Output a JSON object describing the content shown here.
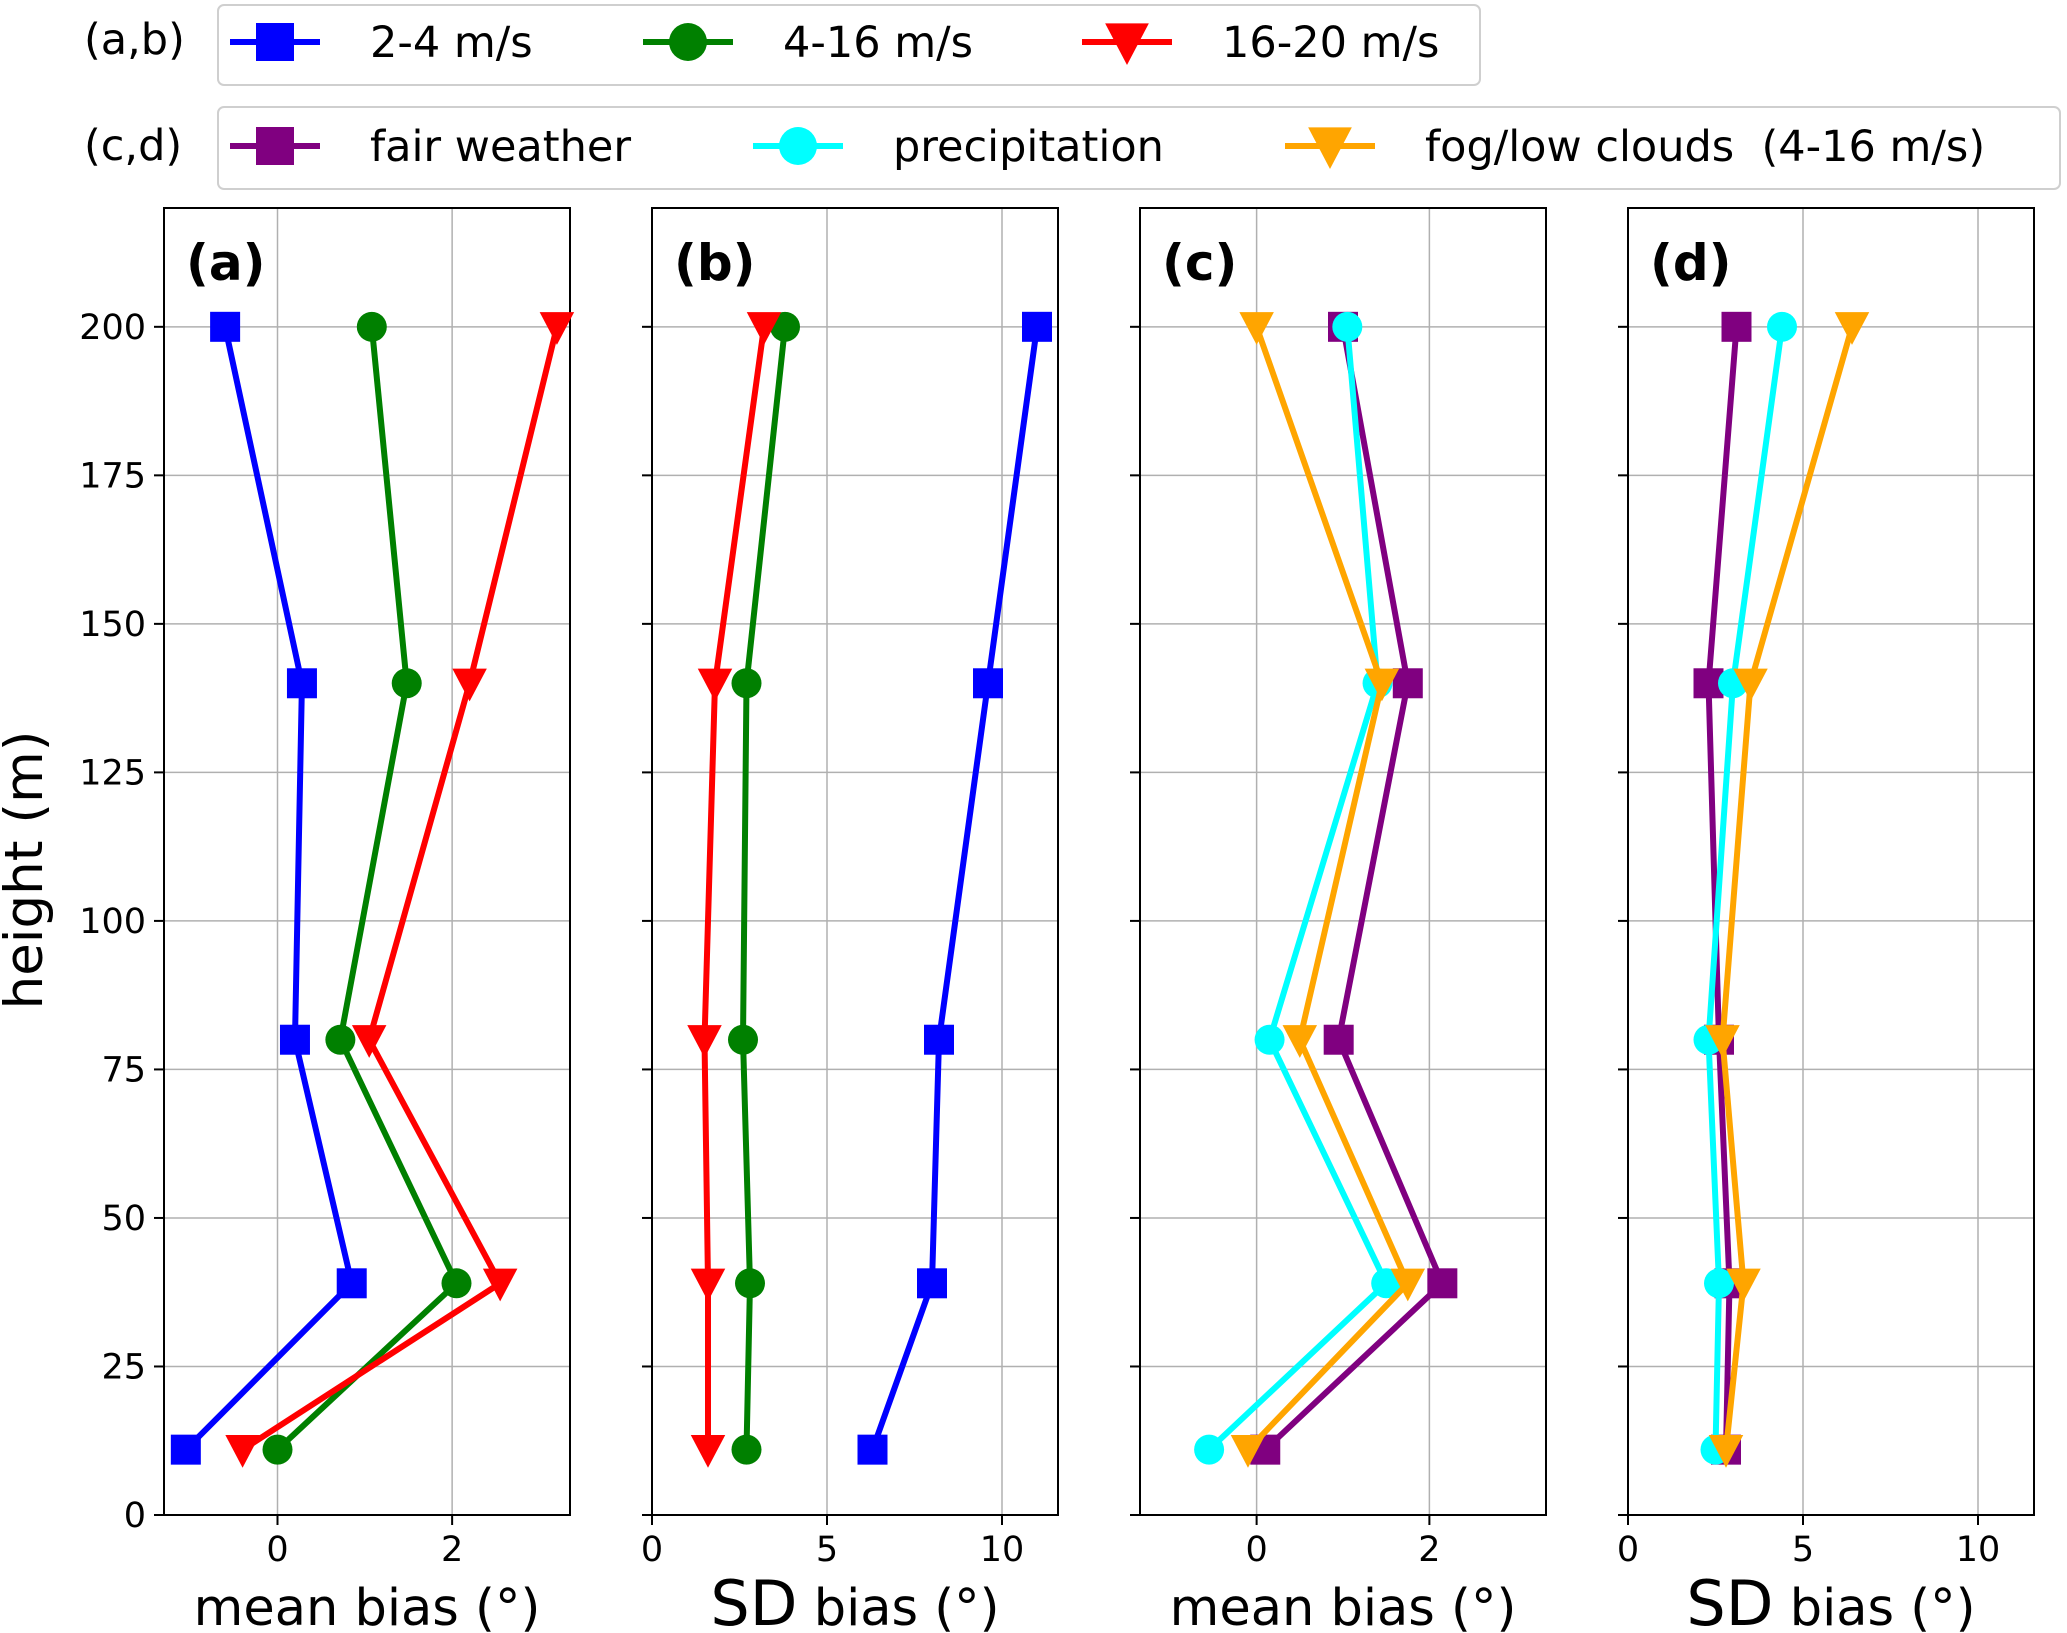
{
  "legends": [
    {
      "tag": "(a,b)",
      "entries": [
        {
          "label": "2-4 m/s",
          "color": "#0000ff",
          "marker": "square"
        },
        {
          "label": "4-16 m/s",
          "color": "#008000",
          "marker": "circle"
        },
        {
          "label": "16-20 m/s",
          "color": "#ff0000",
          "marker": "triangle-down"
        }
      ]
    },
    {
      "tag": "(c,d)",
      "entries": [
        {
          "label": "fair weather",
          "color": "#800080",
          "marker": "square"
        },
        {
          "label": "precipitation",
          "color": "#00ffff",
          "marker": "circle"
        },
        {
          "label": "fog/low clouds  (4-16 m/s)",
          "color": "#ffa500",
          "marker": "triangle-down"
        }
      ]
    }
  ],
  "ylabel": "height (m)",
  "chart_data": [
    {
      "type": "line",
      "panel_label": "(a)",
      "xlabel_prefix": "",
      "xlabel": "mean bias (°)",
      "xlim": [
        -1.3,
        3.35
      ],
      "xticks": [
        0,
        2
      ],
      "ylim": [
        0,
        220
      ],
      "yticks": [
        0,
        25,
        50,
        75,
        100,
        125,
        150,
        175,
        200
      ],
      "show_ytick_labels": true,
      "grid": true,
      "series": [
        {
          "name": "2-4 m/s",
          "color": "#0000ff",
          "marker": "square",
          "x": [
            -1.05,
            0.85,
            0.2,
            0.28,
            -0.6
          ],
          "y": [
            11,
            39,
            80,
            140,
            200
          ]
        },
        {
          "name": "4-16 m/s",
          "color": "#008000",
          "marker": "circle",
          "x": [
            0.0,
            2.05,
            0.72,
            1.48,
            1.08
          ],
          "y": [
            11,
            39,
            80,
            140,
            200
          ]
        },
        {
          "name": "16-20 m/s",
          "color": "#ff0000",
          "marker": "triangle-down",
          "x": [
            -0.4,
            2.55,
            1.05,
            2.2,
            3.2
          ],
          "y": [
            11,
            39,
            80,
            140,
            200
          ]
        }
      ]
    },
    {
      "type": "line",
      "panel_label": "(b)",
      "xlabel_prefix": "SD",
      "xlabel": " bias (°)",
      "xlim": [
        0,
        11.6
      ],
      "xticks": [
        0,
        5,
        10
      ],
      "ylim": [
        0,
        220
      ],
      "yticks": [
        0,
        25,
        50,
        75,
        100,
        125,
        150,
        175,
        200
      ],
      "show_ytick_labels": false,
      "grid": true,
      "series": [
        {
          "name": "2-4 m/s",
          "color": "#0000ff",
          "marker": "square",
          "x": [
            6.3,
            8.0,
            8.2,
            9.6,
            11.0
          ],
          "y": [
            11,
            39,
            80,
            140,
            200
          ]
        },
        {
          "name": "4-16 m/s",
          "color": "#008000",
          "marker": "circle",
          "x": [
            2.7,
            2.8,
            2.6,
            2.7,
            3.8
          ],
          "y": [
            11,
            39,
            80,
            140,
            200
          ]
        },
        {
          "name": "16-20 m/s",
          "color": "#ff0000",
          "marker": "triangle-down",
          "x": [
            1.6,
            1.6,
            1.5,
            1.8,
            3.2
          ],
          "y": [
            11,
            39,
            80,
            140,
            200
          ]
        }
      ]
    },
    {
      "type": "line",
      "panel_label": "(c)",
      "xlabel_prefix": "",
      "xlabel": "mean bias (°)",
      "xlim": [
        -1.35,
        3.35
      ],
      "xticks": [
        0,
        2
      ],
      "ylim": [
        0,
        220
      ],
      "yticks": [
        0,
        25,
        50,
        75,
        100,
        125,
        150,
        175,
        200
      ],
      "show_ytick_labels": false,
      "grid": true,
      "series": [
        {
          "name": "fair weather",
          "color": "#800080",
          "marker": "square",
          "x": [
            0.1,
            2.15,
            0.95,
            1.75,
            1.0
          ],
          "y": [
            11,
            39,
            80,
            140,
            200
          ]
        },
        {
          "name": "precipitation",
          "color": "#00ffff",
          "marker": "circle",
          "x": [
            -0.55,
            1.5,
            0.15,
            1.4,
            1.05
          ],
          "y": [
            11,
            39,
            80,
            140,
            200
          ]
        },
        {
          "name": "fog/low clouds  (4-16 m/s)",
          "color": "#ffa500",
          "marker": "triangle-down",
          "x": [
            -0.1,
            1.75,
            0.5,
            1.45,
            0.0
          ],
          "y": [
            11,
            39,
            80,
            140,
            200
          ]
        }
      ]
    },
    {
      "type": "line",
      "panel_label": "(d)",
      "xlabel_prefix": "SD",
      "xlabel": " bias (°)",
      "xlim": [
        0,
        11.6
      ],
      "xticks": [
        0,
        5,
        10
      ],
      "ylim": [
        0,
        220
      ],
      "yticks": [
        0,
        25,
        50,
        75,
        100,
        125,
        150,
        175,
        200
      ],
      "show_ytick_labels": false,
      "grid": true,
      "series": [
        {
          "name": "fair weather",
          "color": "#800080",
          "marker": "square",
          "x": [
            2.8,
            2.9,
            2.6,
            2.3,
            3.1
          ],
          "y": [
            11,
            39,
            80,
            140,
            200
          ]
        },
        {
          "name": "precipitation",
          "color": "#00ffff",
          "marker": "circle",
          "x": [
            2.5,
            2.6,
            2.3,
            3.0,
            4.4
          ],
          "y": [
            11,
            39,
            80,
            140,
            200
          ]
        },
        {
          "name": "fog/low clouds  (4-16 m/s)",
          "color": "#ffa500",
          "marker": "triangle-down",
          "x": [
            2.8,
            3.3,
            2.7,
            3.5,
            6.4
          ],
          "y": [
            11,
            39,
            80,
            140,
            200
          ]
        }
      ]
    }
  ]
}
